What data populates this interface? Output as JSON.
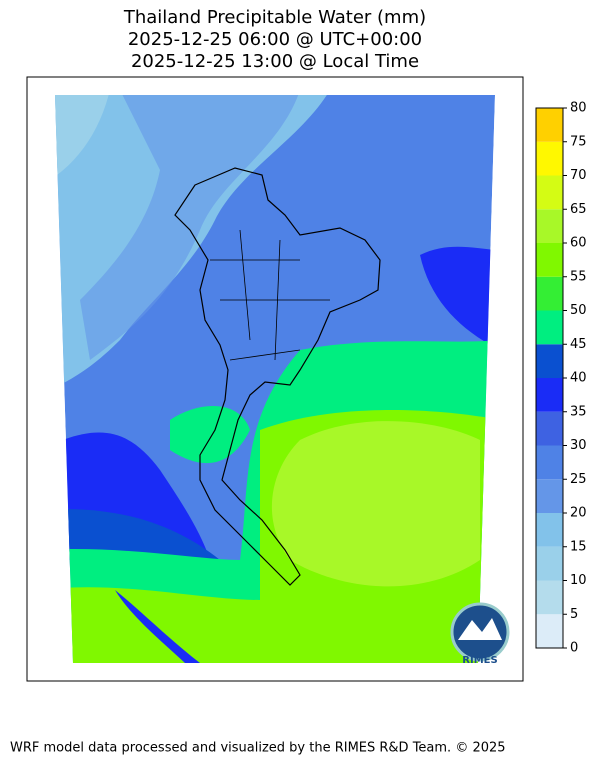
{
  "title": [
    "Thailand Precipitable Water (mm)",
    "2025-12-25 06:00 @ UTC+00:00",
    "2025-12-25 13:00 @ Local Time"
  ],
  "colorbar": {
    "ticks": [
      0,
      5,
      10,
      15,
      20,
      25,
      30,
      35,
      40,
      45,
      50,
      55,
      60,
      65,
      70,
      75,
      80
    ],
    "colors": [
      "#dcecf8",
      "#b4dcec",
      "#9ad0ea",
      "#82c2ea",
      "#6496e8",
      "#4f82e6",
      "#3e62e2",
      "#1a2cf6",
      "#0a50d0",
      "#00ee80",
      "#34ee34",
      "#80f800",
      "#a8f828",
      "#d4fc14",
      "#fff800",
      "#ffd000"
    ]
  },
  "logo": "RIMES",
  "footer": "WRF model data processed and visualized by the RIMES R&D Team. © 2025"
}
